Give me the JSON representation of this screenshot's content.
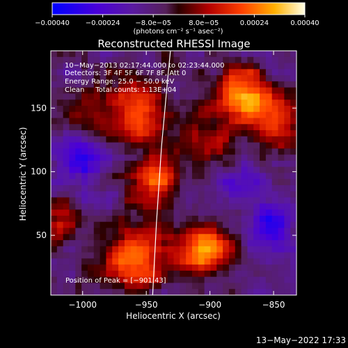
{
  "chart_data": {
    "type": "heatmap",
    "title": "Reconstructed RHESSI Image",
    "xlabel": "Heliocentric X (arcsec)",
    "ylabel": "Heliocentric Y (arcsec)",
    "xlim": [
      -1025,
      -832
    ],
    "ylim": [
      3,
      195
    ],
    "xticks": [
      -1000,
      -950,
      -900,
      -850
    ],
    "yticks": [
      50,
      100,
      150
    ],
    "xtick_labels": [
      "−1000",
      "−950",
      "−900",
      "−850"
    ],
    "ytick_labels": [
      "50",
      "100",
      "150"
    ],
    "grid": false,
    "colorbar": {
      "range": [
        -0.0004,
        0.0004
      ],
      "ticks": [
        -0.0004,
        -0.00024,
        -8e-05,
        8e-05,
        0.00024,
        0.0004
      ],
      "tick_labels": [
        "−0.00040",
        "−0.00024",
        "−8.0e−05",
        "8.0e−05",
        "0.00024",
        "0.00040"
      ],
      "units_label": "(photons cm⁻² s⁻¹ asec⁻²)"
    },
    "annotations": [
      "10−May−2013 02:17:44.000 to 02:23:44.000",
      "Detectors: 3F 4F 5F 6F 7F 8F, Att 0",
      "Energy Range: 25.0 − 50.0 keV",
      "Clean     Total counts: 1.13E+04"
    ],
    "peak_label": "Position of Peak = [−901,43]",
    "peak": [
      -901,
      43
    ],
    "limb_curve": [
      [
        -945,
        3
      ],
      [
        -942,
        60
      ],
      [
        -938,
        120
      ],
      [
        -933,
        175
      ],
      [
        -931,
        195
      ]
    ],
    "grid_cols": 40,
    "grid_rows": 40,
    "blobs": [
      {
        "x": -904,
        "y": 40,
        "r": 14,
        "amp": 0.00042
      },
      {
        "x": -960,
        "y": 30,
        "r": 18,
        "amp": 0.00034
      },
      {
        "x": -945,
        "y": 90,
        "r": 14,
        "amp": 0.0003
      },
      {
        "x": -875,
        "y": 160,
        "r": 16,
        "amp": 0.00036
      },
      {
        "x": -850,
        "y": 140,
        "r": 14,
        "amp": 0.00026
      },
      {
        "x": -960,
        "y": 150,
        "r": 20,
        "amp": 0.00028
      },
      {
        "x": -1015,
        "y": 60,
        "r": 14,
        "amp": 0.00018
      },
      {
        "x": -900,
        "y": 120,
        "r": 14,
        "amp": 0.0002
      },
      {
        "x": -1010,
        "y": 150,
        "r": 12,
        "amp": 0.0001
      },
      {
        "x": -850,
        "y": 60,
        "r": 12,
        "amp": -0.00022
      },
      {
        "x": -1000,
        "y": 110,
        "r": 14,
        "amp": -0.0002
      },
      {
        "x": -880,
        "y": 90,
        "r": 10,
        "amp": -0.00012
      }
    ],
    "baseline": -9e-05,
    "noise_amp": 0.00011
  },
  "footer": {
    "timestamp": "13−May−2022 17:33"
  }
}
